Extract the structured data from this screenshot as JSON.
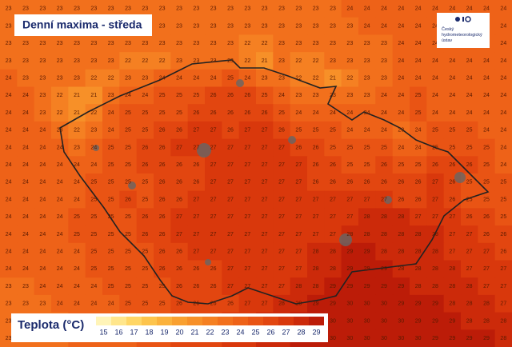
{
  "header": {
    "title": "Denní maxima - středa"
  },
  "logo": {
    "lines": [
      "Český",
      "hydrometeorologický",
      "ústav"
    ]
  },
  "legend": {
    "title": "Teplota (°C)",
    "steps": [
      {
        "value": 15,
        "color": "#fff4b8"
      },
      {
        "value": 16,
        "color": "#ffe68c"
      },
      {
        "value": 17,
        "color": "#ffd666"
      },
      {
        "value": 18,
        "color": "#fdc44c"
      },
      {
        "value": 19,
        "color": "#fbb23c"
      },
      {
        "value": 20,
        "color": "#f9a030"
      },
      {
        "value": 21,
        "color": "#f79028"
      },
      {
        "value": 22,
        "color": "#f58022"
      },
      {
        "value": 23,
        "color": "#f2701c"
      },
      {
        "value": 24,
        "color": "#ee6218"
      },
      {
        "value": 25,
        "color": "#e95414"
      },
      {
        "value": 26,
        "color": "#e24610"
      },
      {
        "value": 27,
        "color": "#d9380c"
      },
      {
        "value": 28,
        "color": "#cc2a0a"
      },
      {
        "value": 29,
        "color": "#bc1c08"
      }
    ]
  },
  "grid": [
    [
      23,
      23,
      23,
      23,
      23,
      23,
      23,
      23,
      23,
      23,
      23,
      23,
      23,
      23,
      23,
      23,
      23,
      23,
      23,
      23,
      24,
      24,
      24,
      24,
      24,
      24,
      24,
      24,
      24,
      24
    ],
    [
      23,
      23,
      23,
      23,
      23,
      23,
      23,
      23,
      23,
      23,
      23,
      23,
      23,
      23,
      23,
      23,
      23,
      23,
      23,
      23,
      23,
      24,
      24,
      24,
      24,
      24,
      24,
      24,
      24,
      24
    ],
    [
      23,
      23,
      23,
      23,
      23,
      23,
      23,
      23,
      23,
      23,
      23,
      23,
      23,
      23,
      22,
      22,
      23,
      23,
      23,
      23,
      23,
      23,
      23,
      24,
      24,
      24,
      24,
      24,
      24,
      24
    ],
    [
      23,
      23,
      23,
      23,
      23,
      23,
      23,
      22,
      22,
      22,
      23,
      23,
      23,
      23,
      22,
      21,
      23,
      22,
      22,
      23,
      23,
      23,
      23,
      24,
      24,
      24,
      24,
      24,
      24,
      24
    ],
    [
      24,
      23,
      23,
      23,
      23,
      22,
      22,
      23,
      23,
      24,
      24,
      24,
      24,
      25,
      24,
      23,
      23,
      22,
      22,
      21,
      22,
      23,
      23,
      24,
      24,
      24,
      24,
      24,
      24,
      24
    ],
    [
      24,
      24,
      23,
      22,
      21,
      21,
      23,
      24,
      24,
      25,
      25,
      25,
      26,
      26,
      26,
      25,
      24,
      23,
      23,
      23,
      23,
      23,
      24,
      24,
      25,
      24,
      24,
      24,
      24,
      24
    ],
    [
      24,
      24,
      23,
      22,
      21,
      22,
      24,
      25,
      25,
      25,
      25,
      26,
      26,
      26,
      26,
      26,
      25,
      24,
      24,
      24,
      24,
      24,
      24,
      24,
      25,
      24,
      24,
      24,
      24,
      24
    ],
    [
      24,
      24,
      24,
      23,
      22,
      23,
      24,
      25,
      25,
      26,
      26,
      27,
      27,
      26,
      27,
      27,
      26,
      25,
      25,
      25,
      24,
      24,
      24,
      23,
      24,
      25,
      25,
      25,
      24,
      24
    ],
    [
      24,
      24,
      24,
      24,
      23,
      24,
      25,
      25,
      26,
      26,
      27,
      27,
      27,
      27,
      27,
      27,
      27,
      26,
      26,
      25,
      25,
      25,
      25,
      24,
      24,
      25,
      25,
      25,
      25,
      24
    ],
    [
      24,
      24,
      24,
      24,
      24,
      24,
      25,
      25,
      26,
      26,
      26,
      26,
      27,
      27,
      27,
      27,
      27,
      27,
      26,
      26,
      25,
      25,
      26,
      25,
      25,
      26,
      26,
      26,
      25,
      24
    ],
    [
      24,
      24,
      24,
      24,
      24,
      25,
      25,
      25,
      25,
      26,
      26,
      26,
      27,
      27,
      27,
      27,
      27,
      27,
      26,
      26,
      26,
      26,
      26,
      26,
      26,
      27,
      26,
      25,
      25,
      25
    ],
    [
      24,
      24,
      24,
      24,
      24,
      25,
      25,
      26,
      25,
      26,
      26,
      27,
      27,
      27,
      27,
      27,
      27,
      27,
      27,
      27,
      27,
      27,
      27,
      26,
      26,
      27,
      26,
      25,
      25,
      25
    ],
    [
      24,
      24,
      24,
      24,
      25,
      25,
      25,
      25,
      26,
      26,
      27,
      27,
      27,
      27,
      27,
      27,
      27,
      27,
      27,
      27,
      27,
      28,
      28,
      28,
      27,
      27,
      27,
      26,
      26,
      25
    ],
    [
      24,
      24,
      24,
      24,
      25,
      25,
      25,
      25,
      26,
      26,
      27,
      27,
      27,
      27,
      27,
      27,
      27,
      27,
      27,
      27,
      28,
      28,
      28,
      28,
      28,
      28,
      27,
      27,
      26,
      26
    ],
    [
      24,
      24,
      24,
      24,
      24,
      25,
      25,
      25,
      25,
      26,
      26,
      27,
      27,
      27,
      27,
      27,
      27,
      27,
      28,
      28,
      29,
      29,
      28,
      28,
      28,
      28,
      27,
      27,
      27,
      26
    ],
    [
      24,
      24,
      24,
      24,
      24,
      25,
      25,
      25,
      25,
      26,
      26,
      26,
      26,
      27,
      27,
      27,
      27,
      27,
      28,
      28,
      29,
      29,
      29,
      28,
      28,
      28,
      28,
      27,
      27,
      27
    ],
    [
      23,
      23,
      24,
      24,
      24,
      24,
      25,
      25,
      25,
      25,
      26,
      26,
      26,
      27,
      27,
      27,
      27,
      28,
      28,
      29,
      29,
      29,
      29,
      29,
      28,
      28,
      28,
      28,
      27,
      27
    ],
    [
      23,
      23,
      23,
      24,
      24,
      24,
      24,
      25,
      25,
      25,
      26,
      26,
      26,
      26,
      27,
      27,
      28,
      28,
      29,
      29,
      30,
      30,
      30,
      29,
      29,
      29,
      28,
      28,
      28,
      27
    ],
    [
      23,
      23,
      23,
      23,
      24,
      24,
      24,
      24,
      25,
      25,
      26,
      26,
      26,
      27,
      27,
      28,
      28,
      29,
      29,
      30,
      30,
      30,
      30,
      30,
      29,
      29,
      29,
      28,
      28,
      28
    ],
    [
      23,
      23,
      23,
      23,
      24,
      24,
      24,
      24,
      25,
      25,
      26,
      26,
      26,
      27,
      27,
      28,
      28,
      29,
      29,
      30,
      30,
      30,
      30,
      30,
      30,
      29,
      29,
      29,
      29,
      28
    ]
  ]
}
